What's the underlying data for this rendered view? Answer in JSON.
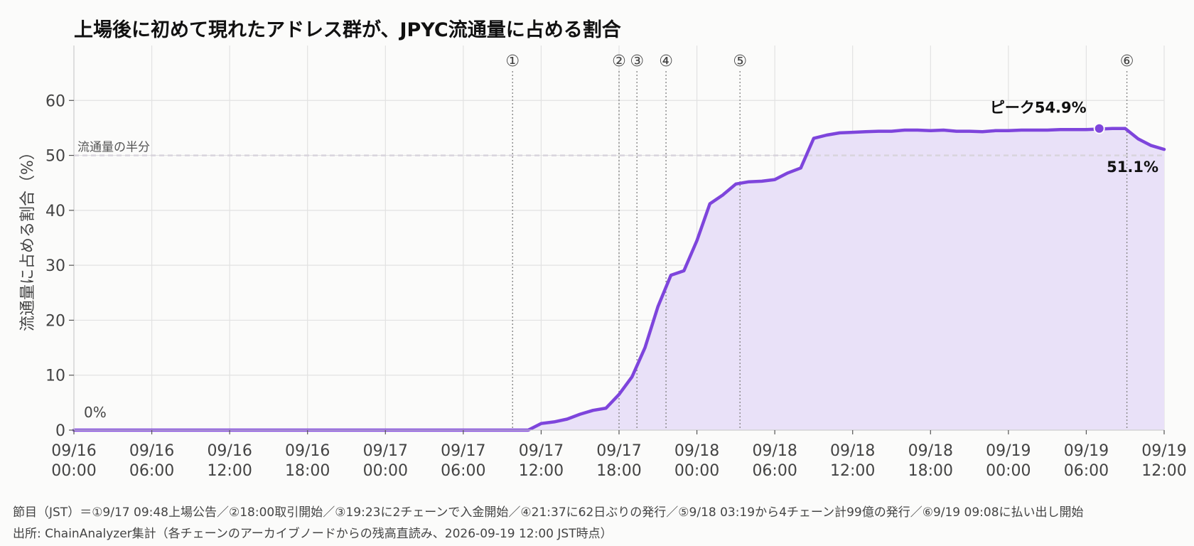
{
  "chart_data": {
    "type": "area",
    "title": "上場後に初めて現れたアドレス群が、JPYC流通量に占める割合",
    "ylabel": "流通量に占める割合（%）",
    "xlabel": "",
    "ylim": [
      0,
      70
    ],
    "yticks": [
      0,
      10,
      20,
      30,
      40,
      50,
      60
    ],
    "xlim": [
      "09/16 00:00",
      "09/19 12:00"
    ],
    "xticks": [
      {
        "x": 0,
        "line1": "09/16",
        "line2": "00:00"
      },
      {
        "x": 6,
        "line1": "09/16",
        "line2": "06:00"
      },
      {
        "x": 12,
        "line1": "09/16",
        "line2": "12:00"
      },
      {
        "x": 18,
        "line1": "09/16",
        "line2": "18:00"
      },
      {
        "x": 24,
        "line1": "09/17",
        "line2": "00:00"
      },
      {
        "x": 30,
        "line1": "09/17",
        "line2": "06:00"
      },
      {
        "x": 36,
        "line1": "09/17",
        "line2": "12:00"
      },
      {
        "x": 42,
        "line1": "09/17",
        "line2": "18:00"
      },
      {
        "x": 48,
        "line1": "09/18",
        "line2": "00:00"
      },
      {
        "x": 54,
        "line1": "09/18",
        "line2": "06:00"
      },
      {
        "x": 60,
        "line1": "09/18",
        "line2": "12:00"
      },
      {
        "x": 66,
        "line1": "09/18",
        "line2": "18:00"
      },
      {
        "x": 72,
        "line1": "09/19",
        "line2": "00:00"
      },
      {
        "x": 78,
        "line1": "09/19",
        "line2": "06:00"
      },
      {
        "x": 84,
        "line1": "09/19",
        "line2": "12:00"
      }
    ],
    "grid": true,
    "series": [
      {
        "name": "",
        "color": "#7e45dc",
        "fill": "#e9e1f8",
        "points": [
          [
            0,
            0
          ],
          [
            35,
            0
          ],
          [
            36,
            1.2
          ],
          [
            37,
            1.5
          ],
          [
            38,
            2.0
          ],
          [
            39,
            2.9
          ],
          [
            40,
            3.6
          ],
          [
            41,
            4.0
          ],
          [
            42,
            6.5
          ],
          [
            43,
            9.7
          ],
          [
            44,
            15.0
          ],
          [
            45,
            22.5
          ],
          [
            46,
            28.2
          ],
          [
            47,
            29.0
          ],
          [
            48,
            34.5
          ],
          [
            49,
            41.2
          ],
          [
            50,
            42.8
          ],
          [
            51,
            44.8
          ],
          [
            52,
            45.2
          ],
          [
            53,
            45.3
          ],
          [
            54,
            45.6
          ],
          [
            55,
            46.8
          ],
          [
            56,
            47.7
          ],
          [
            57,
            53.1
          ],
          [
            58,
            53.7
          ],
          [
            59,
            54.1
          ],
          [
            60,
            54.2
          ],
          [
            61,
            54.3
          ],
          [
            62,
            54.4
          ],
          [
            63,
            54.4
          ],
          [
            64,
            54.6
          ],
          [
            65,
            54.6
          ],
          [
            66,
            54.5
          ],
          [
            67,
            54.6
          ],
          [
            68,
            54.4
          ],
          [
            69,
            54.4
          ],
          [
            70,
            54.3
          ],
          [
            71,
            54.5
          ],
          [
            72,
            54.5
          ],
          [
            73,
            54.6
          ],
          [
            74,
            54.6
          ],
          [
            75,
            54.6
          ],
          [
            76,
            54.7
          ],
          [
            77,
            54.7
          ],
          [
            78,
            54.7
          ],
          [
            79,
            54.8
          ],
          [
            80,
            54.9
          ],
          [
            81,
            54.9
          ],
          [
            82,
            53.0
          ],
          [
            83,
            51.8
          ],
          [
            84,
            51.1
          ]
        ]
      }
    ],
    "reference_line": {
      "y": 50,
      "label": "流通量の半分",
      "color": "#d8d4dc"
    },
    "events": [
      {
        "x": 33.8,
        "label": "①"
      },
      {
        "x": 42.0,
        "label": "②"
      },
      {
        "x": 43.38,
        "label": "③"
      },
      {
        "x": 45.62,
        "label": "④"
      },
      {
        "x": 51.32,
        "label": "⑤"
      },
      {
        "x": 81.13,
        "label": "⑥"
      }
    ],
    "annotations": [
      {
        "x": 0,
        "y": 0,
        "text": "0%"
      },
      {
        "x": 79.0,
        "y": 54.9,
        "text": "ピーク54.9%",
        "marker": true
      },
      {
        "x": 84,
        "y": 51.1,
        "text": "51.1%"
      }
    ]
  },
  "footer": {
    "notes": "節目（JST）＝①9/17 09:48上場公告／②18:00取引開始／③19:23に2チェーンで入金開始／④21:37に62日ぶりの発行／⑤9/18 03:19から4チェーン計99億の発行／⑥9/19 09:08に払い出し開始",
    "source": "出所: ChainAnalyzer集計（各チェーンのアーカイブノードからの残高直読み、2026-09-19 12:00 JST時点）"
  }
}
